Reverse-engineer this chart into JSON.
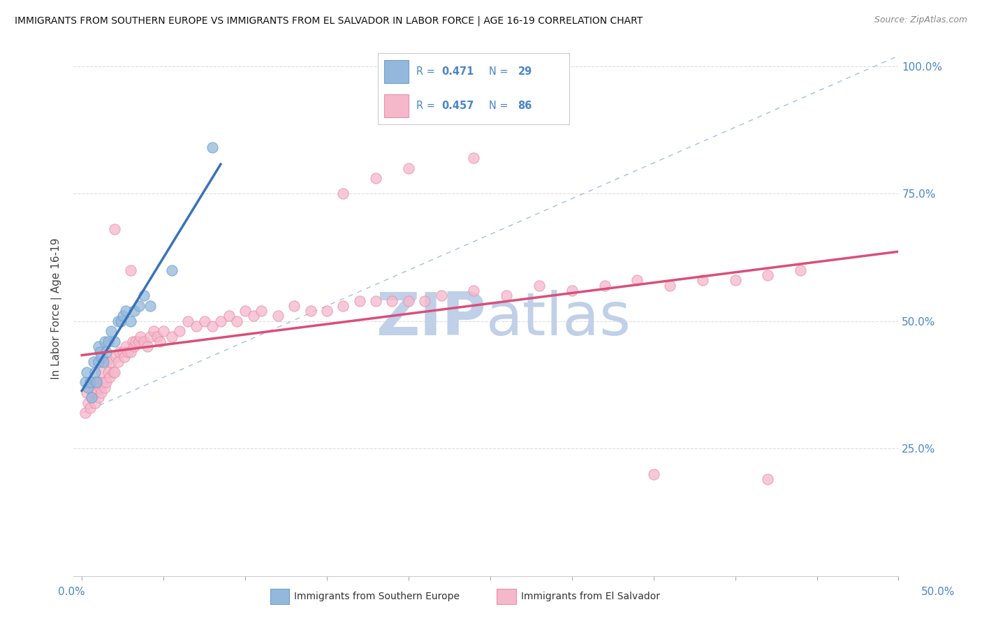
{
  "title": "IMMIGRANTS FROM SOUTHERN EUROPE VS IMMIGRANTS FROM EL SALVADOR IN LABOR FORCE | AGE 16-19 CORRELATION CHART",
  "source": "Source: ZipAtlas.com",
  "ylabel_ticks": [
    0.0,
    0.25,
    0.5,
    0.75,
    1.0
  ],
  "ylabel_labels": [
    "",
    "25.0%",
    "50.0%",
    "75.0%",
    "100.0%"
  ],
  "blue_scatter_color": "#93b8dc",
  "blue_edge_color": "#6fa0cc",
  "pink_scatter_color": "#f5b8cb",
  "pink_edge_color": "#e890aa",
  "trend_blue": "#3a72b8",
  "trend_pink": "#d94f7a",
  "dashed_line_color": "#a0b8d8",
  "watermark_color": "#c0d0e8",
  "blue_scatter_x": [
    0.002,
    0.003,
    0.004,
    0.005,
    0.006,
    0.007,
    0.008,
    0.009,
    0.01,
    0.01,
    0.011,
    0.012,
    0.013,
    0.014,
    0.015,
    0.016,
    0.018,
    0.02,
    0.022,
    0.024,
    0.025,
    0.027,
    0.03,
    0.032,
    0.035,
    0.038,
    0.042,
    0.055,
    0.08
  ],
  "blue_scatter_y": [
    0.38,
    0.4,
    0.37,
    0.38,
    0.35,
    0.42,
    0.4,
    0.38,
    0.42,
    0.45,
    0.44,
    0.43,
    0.42,
    0.46,
    0.44,
    0.46,
    0.48,
    0.46,
    0.5,
    0.5,
    0.51,
    0.52,
    0.5,
    0.52,
    0.53,
    0.55,
    0.53,
    0.6,
    0.84
  ],
  "pink_scatter_x": [
    0.002,
    0.003,
    0.004,
    0.005,
    0.005,
    0.006,
    0.007,
    0.008,
    0.008,
    0.009,
    0.01,
    0.01,
    0.011,
    0.012,
    0.012,
    0.013,
    0.014,
    0.015,
    0.015,
    0.016,
    0.017,
    0.018,
    0.019,
    0.02,
    0.021,
    0.022,
    0.023,
    0.025,
    0.026,
    0.027,
    0.028,
    0.03,
    0.031,
    0.032,
    0.033,
    0.035,
    0.036,
    0.038,
    0.04,
    0.042,
    0.044,
    0.046,
    0.048,
    0.05,
    0.055,
    0.06,
    0.065,
    0.07,
    0.075,
    0.08,
    0.085,
    0.09,
    0.095,
    0.1,
    0.105,
    0.11,
    0.12,
    0.13,
    0.14,
    0.15,
    0.16,
    0.17,
    0.18,
    0.19,
    0.2,
    0.21,
    0.22,
    0.24,
    0.26,
    0.28,
    0.3,
    0.32,
    0.34,
    0.36,
    0.38,
    0.4,
    0.42,
    0.44,
    0.16,
    0.18,
    0.2,
    0.24,
    0.35,
    0.42,
    0.02,
    0.03
  ],
  "pink_scatter_y": [
    0.32,
    0.36,
    0.34,
    0.33,
    0.37,
    0.35,
    0.36,
    0.34,
    0.38,
    0.36,
    0.35,
    0.38,
    0.37,
    0.36,
    0.4,
    0.38,
    0.37,
    0.38,
    0.42,
    0.4,
    0.39,
    0.42,
    0.4,
    0.4,
    0.43,
    0.42,
    0.44,
    0.44,
    0.43,
    0.45,
    0.44,
    0.44,
    0.46,
    0.45,
    0.46,
    0.46,
    0.47,
    0.46,
    0.45,
    0.47,
    0.48,
    0.47,
    0.46,
    0.48,
    0.47,
    0.48,
    0.5,
    0.49,
    0.5,
    0.49,
    0.5,
    0.51,
    0.5,
    0.52,
    0.51,
    0.52,
    0.51,
    0.53,
    0.52,
    0.52,
    0.53,
    0.54,
    0.54,
    0.54,
    0.54,
    0.54,
    0.55,
    0.56,
    0.55,
    0.57,
    0.56,
    0.57,
    0.58,
    0.57,
    0.58,
    0.58,
    0.59,
    0.6,
    0.75,
    0.78,
    0.8,
    0.82,
    0.2,
    0.19,
    0.68,
    0.6
  ]
}
